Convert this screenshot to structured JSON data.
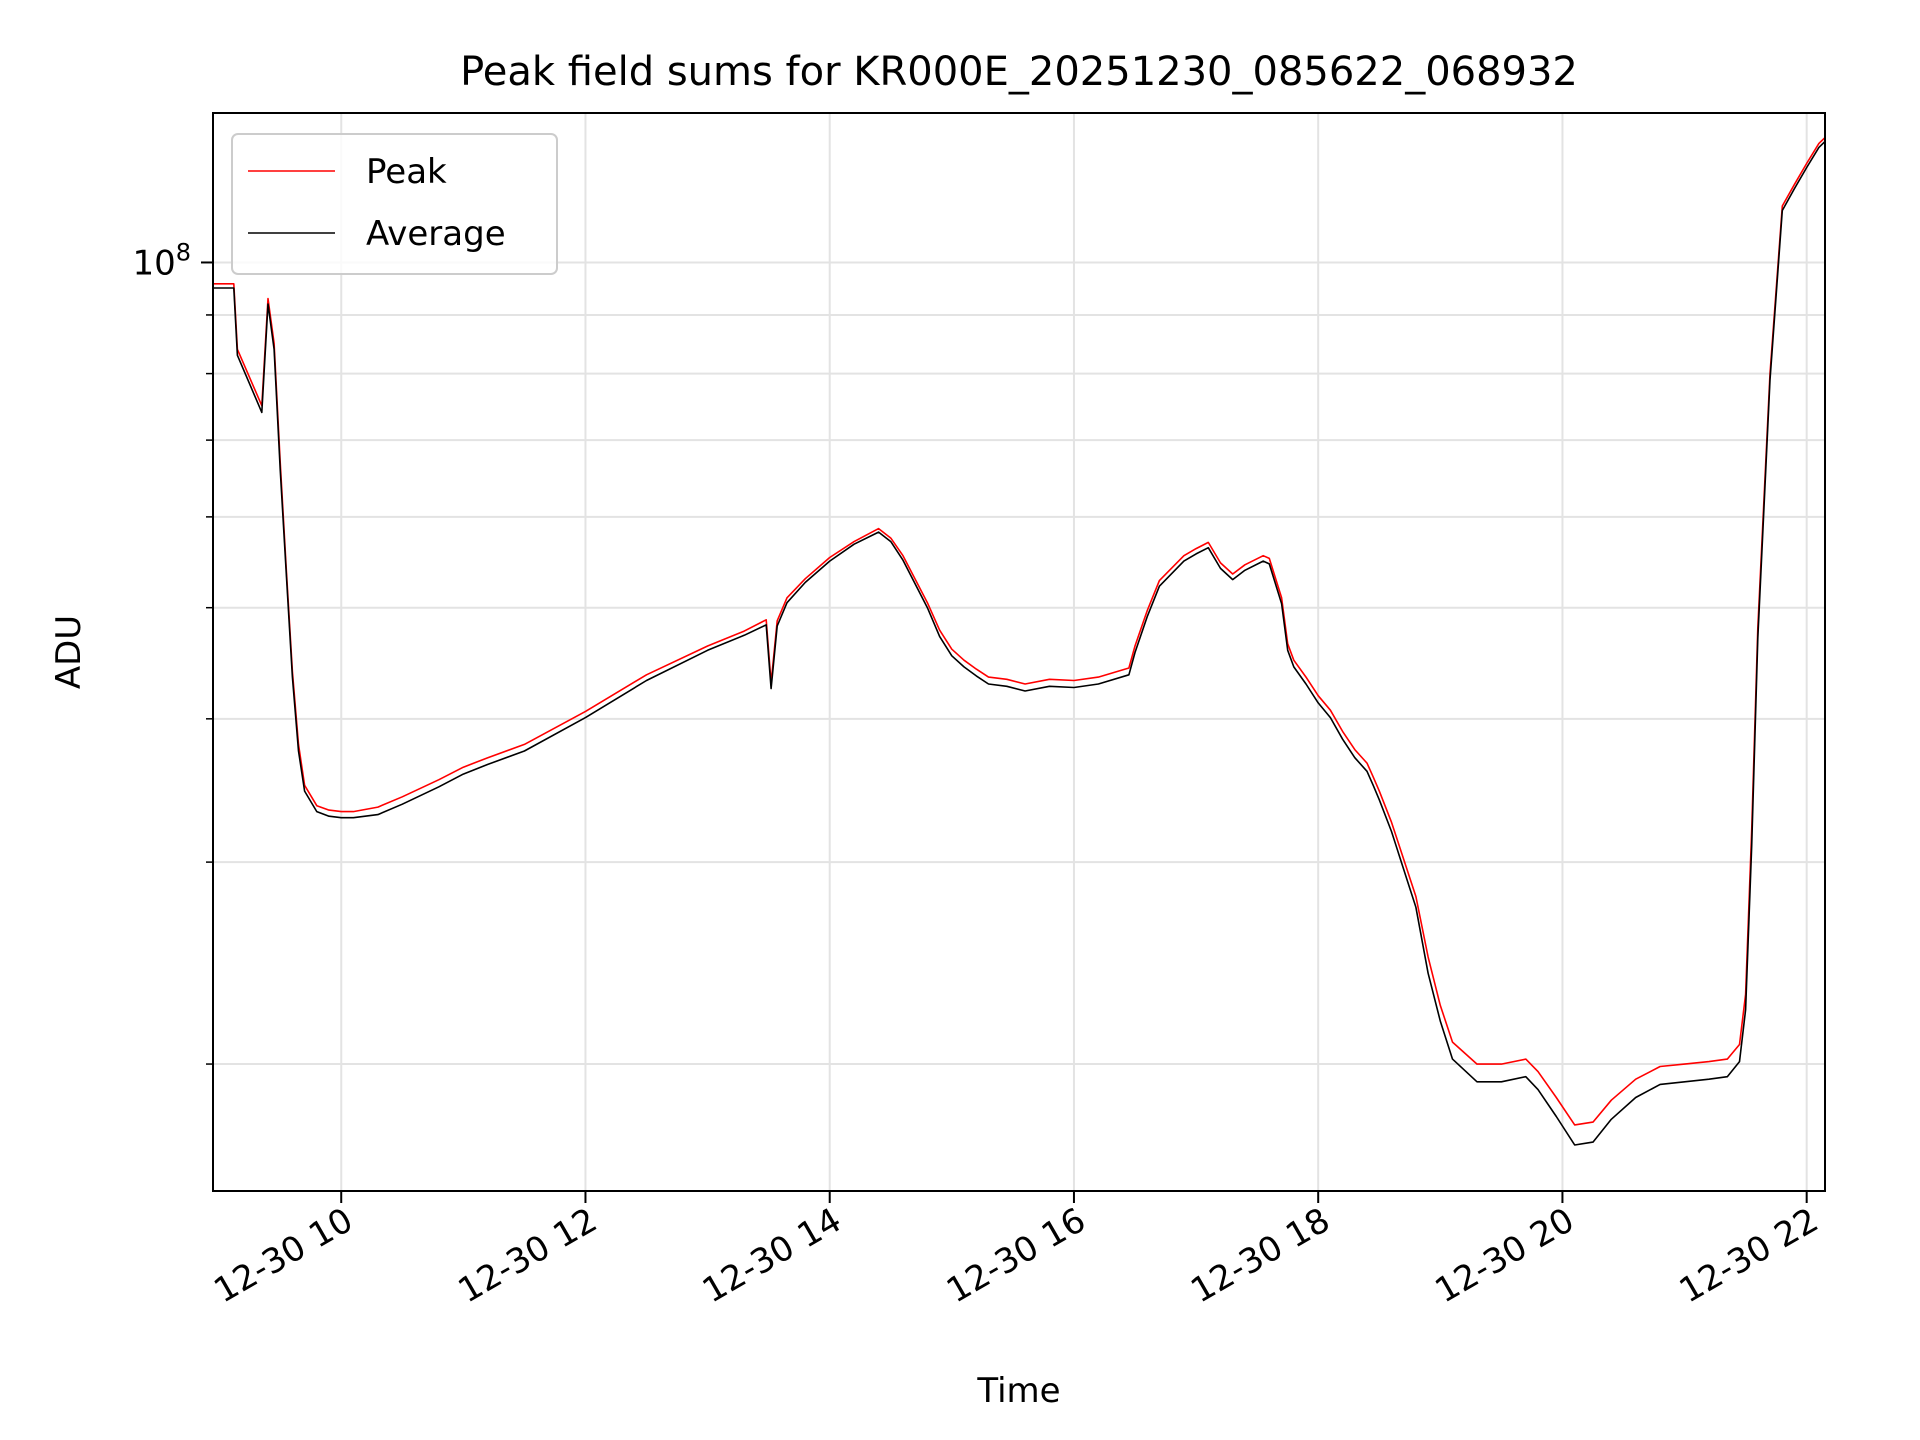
{
  "chart_data": {
    "type": "line",
    "title": "Peak field sums for KR000E_20251230_085622_068932",
    "xlabel": "Time",
    "ylabel": "ADU",
    "yscale": "log",
    "ylim": [
      15500000,
      135000000
    ],
    "xlim": [
      8.95,
      22.15
    ],
    "grid": true,
    "legend_position": "top-left",
    "x_tick_values": [
      10,
      12,
      14,
      16,
      18,
      20,
      22
    ],
    "x_tick_labels": [
      "12-30 10",
      "12-30 12",
      "12-30 14",
      "12-30 16",
      "12-30 18",
      "12-30 20",
      "12-30 22"
    ],
    "y_major_ticks": [
      {
        "value": 100000000,
        "base": "10",
        "exp": "8"
      }
    ],
    "y_minor_ticks": [
      20000000,
      30000000,
      40000000,
      50000000,
      60000000,
      70000000,
      80000000,
      90000000
    ],
    "x_units": "hours (2025-12-30)",
    "series": [
      {
        "name": "Peak",
        "color": "#ff0000",
        "x": [
          8.95,
          9.05,
          9.12,
          9.15,
          9.35,
          9.4,
          9.45,
          9.5,
          9.55,
          9.6,
          9.65,
          9.7,
          9.8,
          9.9,
          10.0,
          10.1,
          10.3,
          10.5,
          10.8,
          11.0,
          11.2,
          11.5,
          12.0,
          12.5,
          13.0,
          13.3,
          13.48,
          13.52,
          13.57,
          13.65,
          13.8,
          14.0,
          14.2,
          14.4,
          14.5,
          14.6,
          14.8,
          14.9,
          15.0,
          15.1,
          15.2,
          15.3,
          15.45,
          15.6,
          15.8,
          16.0,
          16.2,
          16.45,
          16.5,
          16.6,
          16.7,
          16.9,
          17.0,
          17.1,
          17.2,
          17.3,
          17.4,
          17.55,
          17.6,
          17.7,
          17.75,
          17.8,
          17.9,
          18.0,
          18.1,
          18.2,
          18.3,
          18.4,
          18.45,
          18.5,
          18.6,
          18.8,
          18.9,
          19.0,
          19.1,
          19.3,
          19.5,
          19.7,
          19.8,
          19.95,
          20.1,
          20.25,
          20.4,
          20.6,
          20.8,
          21.0,
          21.2,
          21.35,
          21.45,
          21.5,
          21.55,
          21.6,
          21.7,
          21.8,
          21.9,
          22.0,
          22.1,
          22.15
        ],
        "y": [
          95800000,
          95800000,
          95800000,
          84000000,
          75000000,
          93000000,
          85000000,
          67000000,
          54000000,
          44000000,
          38000000,
          35000000,
          33600000,
          33300000,
          33200000,
          33200000,
          33500000,
          34200000,
          35400000,
          36300000,
          37000000,
          38000000,
          40600000,
          43700000,
          46300000,
          47700000,
          48800000,
          43000000,
          48700000,
          51000000,
          53000000,
          55300000,
          57100000,
          58600000,
          57500000,
          55500000,
          50500000,
          47800000,
          46000000,
          45000000,
          44200000,
          43500000,
          43300000,
          42900000,
          43300000,
          43200000,
          43500000,
          44300000,
          46300000,
          49700000,
          52800000,
          55500000,
          56300000,
          57000000,
          54700000,
          53500000,
          54500000,
          55500000,
          55200000,
          51000000,
          46500000,
          45000000,
          43500000,
          41900000,
          40700000,
          39000000,
          37600000,
          36600000,
          35600000,
          34600000,
          32500000,
          28000000,
          24800000,
          22500000,
          20900000,
          20000000,
          20000000,
          20200000,
          19700000,
          18700000,
          17700000,
          17800000,
          18600000,
          19400000,
          19900000,
          20000000,
          20100000,
          20200000,
          20800000,
          23000000,
          32000000,
          48000000,
          80000000,
          112000000,
          117000000,
          122000000,
          127000000,
          128500000
        ]
      },
      {
        "name": "Average",
        "color": "#000000",
        "x": [
          8.95,
          9.05,
          9.12,
          9.15,
          9.35,
          9.4,
          9.45,
          9.5,
          9.55,
          9.6,
          9.65,
          9.7,
          9.8,
          9.9,
          10.0,
          10.1,
          10.3,
          10.5,
          10.8,
          11.0,
          11.2,
          11.5,
          12.0,
          12.5,
          13.0,
          13.3,
          13.48,
          13.52,
          13.57,
          13.65,
          13.8,
          14.0,
          14.2,
          14.4,
          14.5,
          14.6,
          14.8,
          14.9,
          15.0,
          15.1,
          15.2,
          15.3,
          15.45,
          15.6,
          15.8,
          16.0,
          16.2,
          16.45,
          16.5,
          16.6,
          16.7,
          16.9,
          17.0,
          17.1,
          17.2,
          17.3,
          17.4,
          17.55,
          17.6,
          17.7,
          17.75,
          17.8,
          17.9,
          18.0,
          18.1,
          18.2,
          18.3,
          18.4,
          18.45,
          18.5,
          18.6,
          18.8,
          18.9,
          19.0,
          19.1,
          19.3,
          19.5,
          19.7,
          19.8,
          19.95,
          20.1,
          20.25,
          20.4,
          20.6,
          20.8,
          21.0,
          21.2,
          21.35,
          21.45,
          21.5,
          21.55,
          21.6,
          21.7,
          21.8,
          21.9,
          22.0,
          22.1,
          22.15
        ],
        "y": [
          95000000,
          95000000,
          95000000,
          83000000,
          74000000,
          92000000,
          84000000,
          66000000,
          53500000,
          43500000,
          37500000,
          34600000,
          33200000,
          32900000,
          32800000,
          32800000,
          33000000,
          33700000,
          34900000,
          35800000,
          36500000,
          37500000,
          40100000,
          43200000,
          45900000,
          47300000,
          48300000,
          42500000,
          48200000,
          50500000,
          52600000,
          54900000,
          56800000,
          58200000,
          57100000,
          55000000,
          50000000,
          47200000,
          45400000,
          44400000,
          43600000,
          42900000,
          42700000,
          42300000,
          42700000,
          42600000,
          42900000,
          43700000,
          45700000,
          49100000,
          52200000,
          54900000,
          55700000,
          56400000,
          54100000,
          52900000,
          53900000,
          54900000,
          54600000,
          50400000,
          45900000,
          44400000,
          42900000,
          41300000,
          40100000,
          38400000,
          37000000,
          36000000,
          35000000,
          34000000,
          31900000,
          27400000,
          24000000,
          21800000,
          20200000,
          19300000,
          19300000,
          19500000,
          19000000,
          18000000,
          17000000,
          17100000,
          17900000,
          18700000,
          19200000,
          19300000,
          19400000,
          19500000,
          20100000,
          22300000,
          31000000,
          47000000,
          79000000,
          111000000,
          116000000,
          121000000,
          126000000,
          127500000
        ]
      }
    ]
  }
}
